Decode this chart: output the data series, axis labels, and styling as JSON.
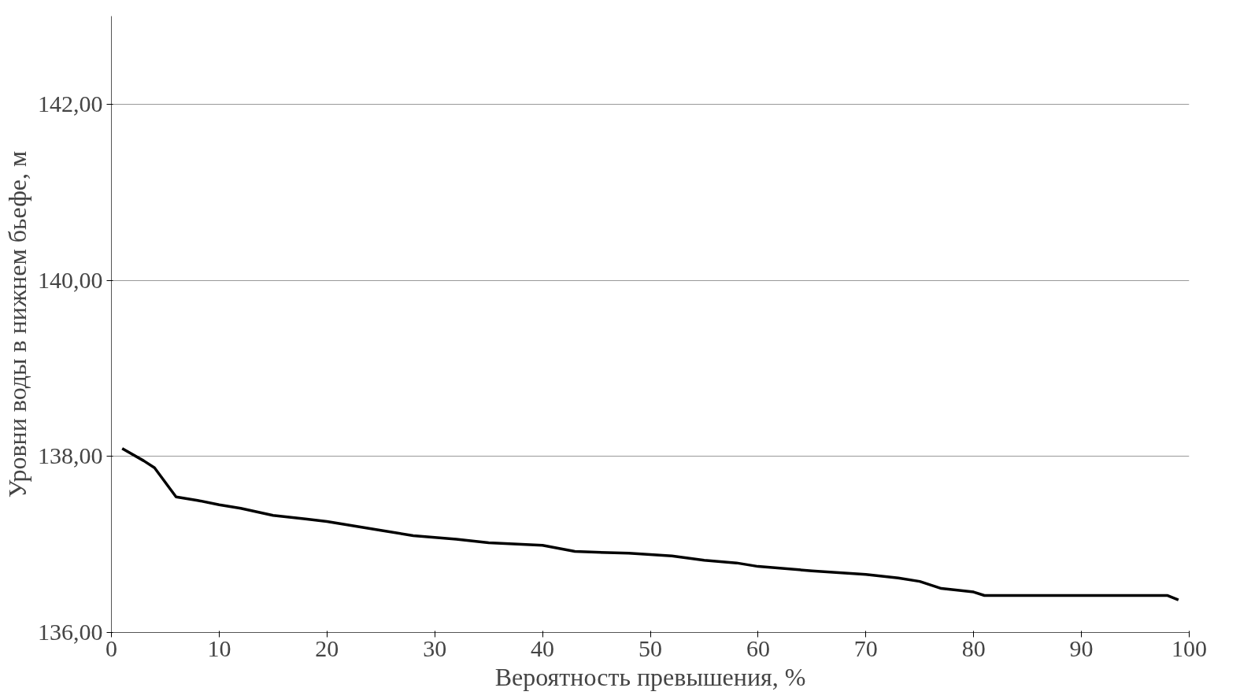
{
  "chart_data": {
    "type": "line",
    "xlabel": "Вероятность превышения, %",
    "ylabel": "Уровни воды в нижнем бьефе, м",
    "x": [
      1,
      3,
      4,
      6,
      8,
      10,
      12,
      15,
      18,
      20,
      25,
      28,
      32,
      35,
      40,
      43,
      48,
      52,
      55,
      58,
      60,
      65,
      70,
      73,
      75,
      77,
      80,
      81,
      85,
      90,
      98,
      99
    ],
    "series": [
      {
        "color": "#000000",
        "values": [
          138.09,
          137.95,
          137.87,
          137.54,
          137.5,
          137.45,
          137.41,
          137.33,
          137.29,
          137.26,
          137.16,
          137.1,
          137.06,
          137.02,
          136.99,
          136.92,
          136.9,
          136.87,
          136.82,
          136.79,
          136.75,
          136.7,
          136.66,
          136.62,
          136.58,
          136.5,
          136.46,
          136.42,
          136.42,
          136.42,
          136.42,
          136.37
        ]
      }
    ],
    "xlim": [
      0,
      100
    ],
    "ylim": [
      136,
      143
    ],
    "xticks": [
      0,
      10,
      20,
      30,
      40,
      50,
      60,
      70,
      80,
      90,
      100
    ],
    "yticks": [
      {
        "value": 136,
        "label": "136,00"
      },
      {
        "value": 138,
        "label": "138,00"
      },
      {
        "value": 140,
        "label": "140,00"
      },
      {
        "value": 142,
        "label": "142,00"
      }
    ],
    "grid": "y",
    "marker": "none",
    "line_style": "solid"
  }
}
